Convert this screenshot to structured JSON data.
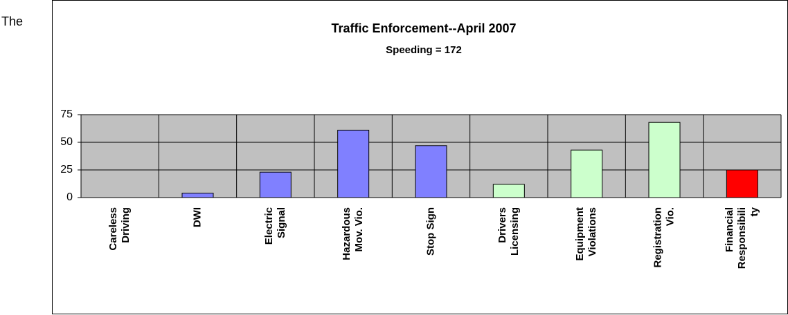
{
  "text": "The",
  "chart_data": {
    "type": "bar",
    "title": "Traffic Enforcement--April 2007",
    "subtitle": "Speeding = 172",
    "categories": [
      [
        "Careless",
        "Driving"
      ],
      [
        "DWI"
      ],
      [
        "Electric",
        "Signal"
      ],
      [
        "Hazardous",
        "Mov. Vio."
      ],
      [
        "Stop Sign"
      ],
      [
        "Drivers",
        "Licensing"
      ],
      [
        "Equipment",
        "Violations"
      ],
      [
        "Registration",
        "Vio."
      ],
      [
        "Financial",
        "Responsibili",
        "ty"
      ]
    ],
    "values": [
      0,
      4,
      23,
      61,
      47,
      12,
      43,
      68,
      25
    ],
    "colors": [
      "#8080ff",
      "#8080ff",
      "#8080ff",
      "#8080ff",
      "#8080ff",
      "#ccffcc",
      "#ccffcc",
      "#ccffcc",
      "#ff0000"
    ],
    "ylim": [
      0,
      75
    ],
    "yticks": [
      0,
      25,
      50,
      75
    ],
    "grid": true
  }
}
